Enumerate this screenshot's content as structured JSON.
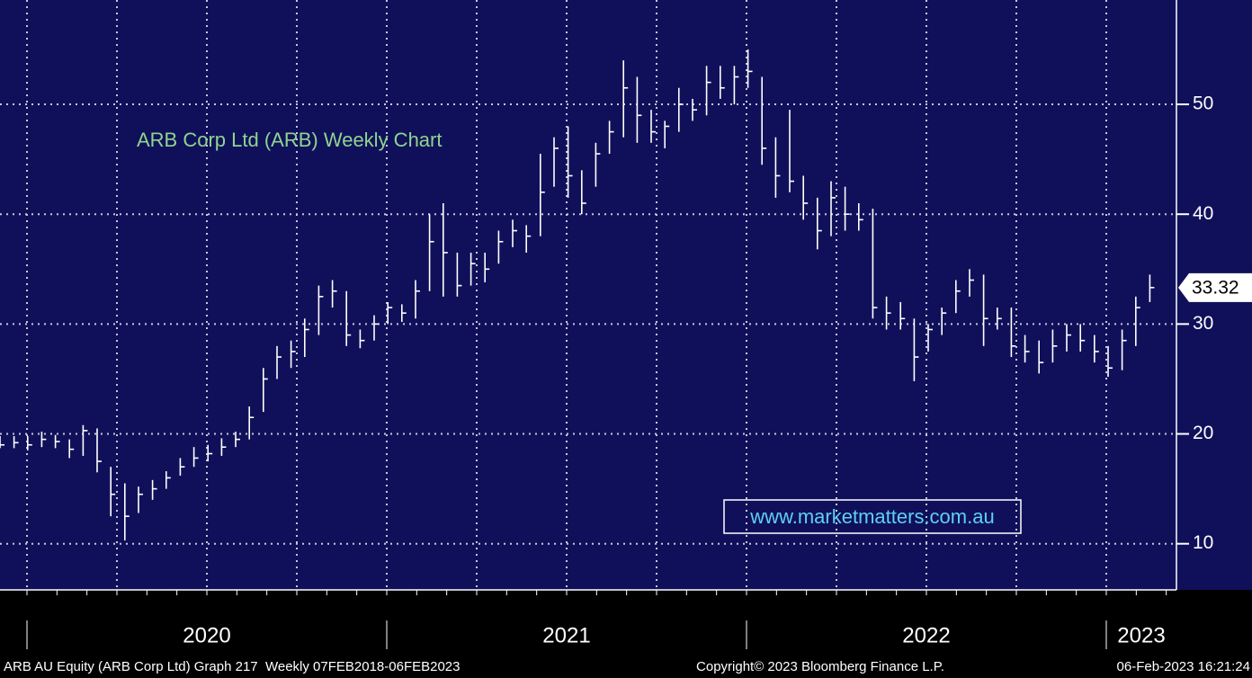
{
  "chart_data": {
    "type": "hlc",
    "title": "ARB Corp Ltd (ARB) Weekly Chart",
    "title_color": "#8fd48f",
    "watermark": "www.marketmatters.com.au",
    "footer_left": "ARB AU Equity (ARB Corp Ltd) Graph 217  Weekly 07FEB2018-06FEB2023",
    "footer_center": "Copyright© 2023 Bloomberg Finance L.P.",
    "footer_right": "06-Feb-2023 16:21:24",
    "color": "#ffffff",
    "grid": true,
    "xlim": [
      2019.925,
      2023.195
    ],
    "xticks": [
      2020,
      2021,
      2022,
      2023
    ],
    "ylim": [
      5.8,
      59.5
    ],
    "yticks": [
      10,
      20,
      30,
      40,
      50
    ],
    "x": [
      2019.925,
      2019.964,
      2020.002,
      2020.041,
      2020.079,
      2020.118,
      2020.156,
      2020.195,
      2020.233,
      2020.272,
      2020.31,
      2020.349,
      2020.387,
      2020.426,
      2020.464,
      2020.503,
      2020.541,
      2020.58,
      2020.618,
      2020.657,
      2020.695,
      2020.734,
      2020.772,
      2020.811,
      2020.849,
      2020.888,
      2020.926,
      2020.965,
      2021.003,
      2021.042,
      2021.08,
      2021.119,
      2021.157,
      2021.196,
      2021.234,
      2021.273,
      2021.311,
      2021.35,
      2021.388,
      2021.427,
      2021.465,
      2021.504,
      2021.542,
      2021.581,
      2021.619,
      2021.658,
      2021.696,
      2021.735,
      2021.773,
      2021.812,
      2021.85,
      2021.889,
      2021.927,
      2021.966,
      2022.004,
      2022.043,
      2022.081,
      2022.12,
      2022.158,
      2022.197,
      2022.235,
      2022.274,
      2022.312,
      2022.351,
      2022.389,
      2022.428,
      2022.466,
      2022.505,
      2022.543,
      2022.582,
      2022.62,
      2022.659,
      2022.697,
      2022.736,
      2022.774,
      2022.813,
      2022.851,
      2022.89,
      2022.928,
      2022.967,
      2023.005,
      2023.044,
      2023.082,
      2023.121
    ],
    "high": [
      19.8,
      19.8,
      19.8,
      20.2,
      19.9,
      19.5,
      20.8,
      20.5,
      17.0,
      15.5,
      15.2,
      15.8,
      16.6,
      17.8,
      18.8,
      19.0,
      19.6,
      20.2,
      22.5,
      26.0,
      28.0,
      28.5,
      30.5,
      33.5,
      34.0,
      33.0,
      29.5,
      30.8,
      32.0,
      31.8,
      34.0,
      40.0,
      41.0,
      36.5,
      36.5,
      36.5,
      38.5,
      39.5,
      39.0,
      45.5,
      47.0,
      48.0,
      44.0,
      46.5,
      48.5,
      54.0,
      52.5,
      49.5,
      48.5,
      51.5,
      50.5,
      53.5,
      53.5,
      53.5,
      55.0,
      52.5,
      47.0,
      49.5,
      43.5,
      41.5,
      43.0,
      42.5,
      41.0,
      40.5,
      32.5,
      32.0,
      30.5,
      30.0,
      31.5,
      34.0,
      35.0,
      34.5,
      31.5,
      31.5,
      29.0,
      28.5,
      29.5,
      30.0,
      30.0,
      29.0,
      28.0,
      29.5,
      32.5,
      34.5
    ],
    "low": [
      18.7,
      18.7,
      18.5,
      18.8,
      18.7,
      17.8,
      18.0,
      16.5,
      12.5,
      10.3,
      12.8,
      14.0,
      15.0,
      16.2,
      17.0,
      17.5,
      18.0,
      18.8,
      19.5,
      22.0,
      25.0,
      26.0,
      27.0,
      29.0,
      31.5,
      28.0,
      27.8,
      28.5,
      30.0,
      30.2,
      30.5,
      33.0,
      32.5,
      32.5,
      33.5,
      33.8,
      35.5,
      37.0,
      36.5,
      38.0,
      42.5,
      41.5,
      40.0,
      42.5,
      45.5,
      47.0,
      46.5,
      46.5,
      46.0,
      47.5,
      48.5,
      49.0,
      50.5,
      50.0,
      51.5,
      44.5,
      41.5,
      42.0,
      39.5,
      36.8,
      38.0,
      38.5,
      38.5,
      30.5,
      29.5,
      29.5,
      24.8,
      27.5,
      29.0,
      31.0,
      32.5,
      28.0,
      29.5,
      27.0,
      26.5,
      25.5,
      26.5,
      27.5,
      27.5,
      26.5,
      25.2,
      25.8,
      28.0,
      32.0
    ],
    "close": [
      19.0,
      19.2,
      19.0,
      19.5,
      19.3,
      18.6,
      20.3,
      17.5,
      14.5,
      12.5,
      14.5,
      15.0,
      16.0,
      17.0,
      17.8,
      18.2,
      18.8,
      19.5,
      21.5,
      25.0,
      27.0,
      27.5,
      29.5,
      32.5,
      33.0,
      29.0,
      28.5,
      30.0,
      31.5,
      31.0,
      33.0,
      37.5,
      36.5,
      33.5,
      35.5,
      35.0,
      37.5,
      38.5,
      38.0,
      42.0,
      46.0,
      43.5,
      41.0,
      45.5,
      47.5,
      51.5,
      49.0,
      47.5,
      48.0,
      50.0,
      49.5,
      52.0,
      51.5,
      52.5,
      53.0,
      46.0,
      43.5,
      43.0,
      41.0,
      38.5,
      41.5,
      40.0,
      39.5,
      31.5,
      31.0,
      30.5,
      27.0,
      29.5,
      31.0,
      33.0,
      34.0,
      30.5,
      30.5,
      28.0,
      27.5,
      26.5,
      28.0,
      29.0,
      28.5,
      27.5,
      26.0,
      28.5,
      31.5,
      33.32
    ]
  }
}
